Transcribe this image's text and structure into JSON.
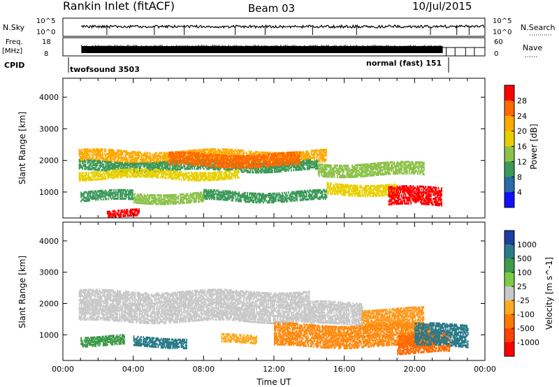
{
  "header": {
    "station": "Rankin Inlet (fitACF)",
    "beam": "Beam 03",
    "date": "10/Jul/2015"
  },
  "top_panels": {
    "nsky": {
      "left_label": "N.Sky",
      "left_ticks": [
        "10^5",
        "10^0"
      ],
      "right_label": "N.Search",
      "right_ticks": [
        "10^5",
        "10^0"
      ]
    },
    "freq": {
      "left_label_1": "Freq.",
      "left_label_2": "[MHz]",
      "left_ticks": [
        "18",
        "8"
      ],
      "right_label": "Nave",
      "right_ticks": [
        "60",
        "0"
      ]
    },
    "cpid": {
      "label": "CPID",
      "entries": [
        {
          "text": "twofsound 3503",
          "start_hour": 1.05
        },
        {
          "text": "normal (fast) 151",
          "end_hour": 22.1
        }
      ]
    }
  },
  "chart_data": [
    {
      "type": "heatmap",
      "title": "",
      "parameter": "Power",
      "colorbar_label": "Power [dB]",
      "colorbar_ticks": [
        "28",
        "24",
        "20",
        "16",
        "12",
        "8",
        "4"
      ],
      "colorbar_colors": [
        "#ff0000",
        "#ff6a00",
        "#ffaa00",
        "#e8d000",
        "#8cc24a",
        "#3c9a5a",
        "#2a6aa8",
        "#1010ff"
      ],
      "xlabel": "",
      "ylabel": "Slant Range [km]",
      "xlim_hours": [
        0,
        24
      ],
      "ylim_km": [
        180,
        4600
      ],
      "y_ticks": [
        "1000",
        "2000",
        "3000",
        "4000"
      ],
      "x_ticks": [
        "00:00",
        "04:00",
        "08:00",
        "12:00",
        "16:00",
        "20:00",
        "00:00"
      ],
      "bands": [
        {
          "h": [
            0.9,
            15.0
          ],
          "km": [
            1900,
            2300
          ],
          "color": "#ffaa00"
        },
        {
          "h": [
            0.9,
            14.5
          ],
          "km": [
            1650,
            1950
          ],
          "color": "#3c9a5a"
        },
        {
          "h": [
            6.0,
            13.5
          ],
          "km": [
            1800,
            2200
          ],
          "color": "#ff6a00"
        },
        {
          "h": [
            14.5,
            20.5
          ],
          "km": [
            1500,
            1900
          ],
          "color": "#8cc24a"
        },
        {
          "h": [
            0.9,
            10.0
          ],
          "km": [
            1400,
            1650
          ],
          "color": "#e8d000"
        },
        {
          "h": [
            1.0,
            4.0
          ],
          "km": [
            700,
            1000
          ],
          "color": "#3c9a5a"
        },
        {
          "h": [
            4.0,
            8.0
          ],
          "km": [
            650,
            950
          ],
          "color": "#8cc24a"
        },
        {
          "h": [
            8.0,
            15.0
          ],
          "km": [
            700,
            1000
          ],
          "color": "#3c9a5a"
        },
        {
          "h": [
            15.0,
            19.0
          ],
          "km": [
            900,
            1250
          ],
          "color": "#e8d000"
        },
        {
          "h": [
            18.5,
            21.5
          ],
          "km": [
            550,
            1100
          ],
          "color": "#ff0000"
        },
        {
          "h": [
            2.5,
            4.3
          ],
          "km": [
            180,
            400
          ],
          "color": "#ff0000"
        }
      ]
    },
    {
      "type": "heatmap",
      "title": "",
      "parameter": "Velocity",
      "colorbar_label": "Velocity [m s^-1]",
      "colorbar_ticks": [
        "1000",
        "500",
        "100",
        "25",
        "-25",
        "-100",
        "-500",
        "-1000"
      ],
      "colorbar_colors": [
        "#1c3fa0",
        "#2a7a8a",
        "#3f9a4a",
        "#7acc44",
        "#c8c8c8",
        "#ffaa20",
        "#ff7a00",
        "#ff4000",
        "#ff0000"
      ],
      "xlabel": "Time UT",
      "ylabel": "Slant Range [km]",
      "xlim_hours": [
        0,
        24
      ],
      "ylim_km": [
        180,
        4600
      ],
      "y_ticks": [
        "1000",
        "2000",
        "3000",
        "4000"
      ],
      "x_ticks": [
        "00:00",
        "04:00",
        "08:00",
        "12:00",
        "16:00",
        "20:00",
        "00:00"
      ],
      "bands": [
        {
          "h": [
            0.9,
            14.0
          ],
          "km": [
            1400,
            2350
          ],
          "color": "#c8c8c8"
        },
        {
          "h": [
            14.0,
            17.0
          ],
          "km": [
            1300,
            2000
          ],
          "color": "#c8c8c8"
        },
        {
          "h": [
            17.0,
            20.5
          ],
          "km": [
            1200,
            1800
          ],
          "color": "#ff9a20"
        },
        {
          "h": [
            12.0,
            21.0
          ],
          "km": [
            600,
            1300
          ],
          "color": "#ff8a10"
        },
        {
          "h": [
            1.0,
            3.5
          ],
          "km": [
            650,
            950
          ],
          "color": "#3f9a4a"
        },
        {
          "h": [
            4.0,
            7.0
          ],
          "km": [
            600,
            900
          ],
          "color": "#2a7a8a"
        },
        {
          "h": [
            9.0,
            11.0
          ],
          "km": [
            700,
            950
          ],
          "color": "#ffaa20"
        },
        {
          "h": [
            19.0,
            22.0
          ],
          "km": [
            400,
            1000
          ],
          "color": "#ff6a00"
        },
        {
          "h": [
            20.0,
            23.0
          ],
          "km": [
            600,
            1300
          ],
          "color": "#2a7a8a"
        }
      ]
    }
  ]
}
